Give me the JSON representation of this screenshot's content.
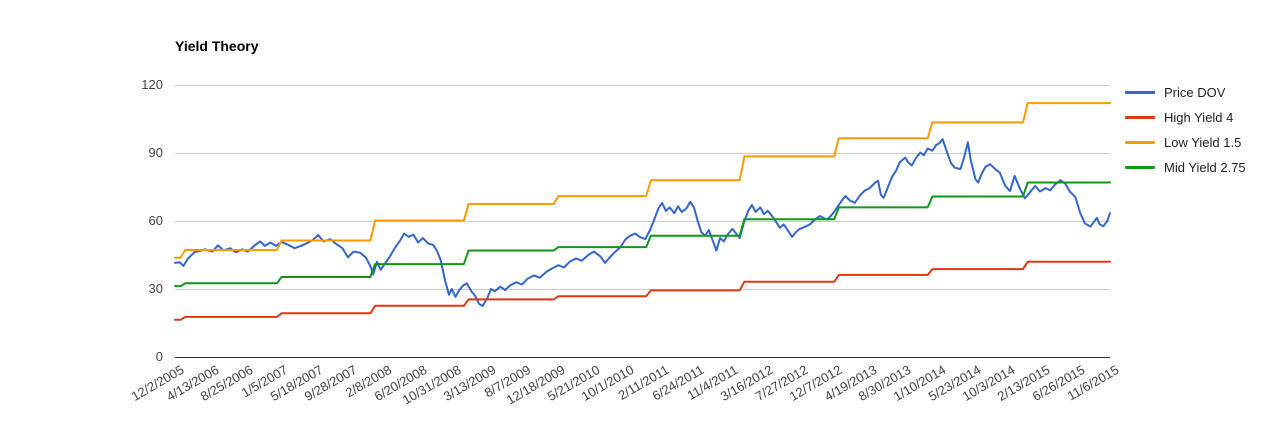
{
  "chart_data": {
    "type": "line",
    "title": "Yield Theory",
    "ylim": [
      0,
      120
    ],
    "y_ticks": [
      0,
      30,
      60,
      90,
      120
    ],
    "grid": "horizontal-on",
    "legend_position": "right",
    "axis_colors": {
      "text": "#444444",
      "grid": "#cccccc",
      "baseline": "#333333"
    },
    "x_labels": [
      "12/2/2005",
      "4/13/2006",
      "8/25/2006",
      "1/5/2007",
      "5/18/2007",
      "9/28/2007",
      "2/8/2008",
      "6/20/2008",
      "10/31/2008",
      "3/13/2009",
      "8/7/2009",
      "12/18/2009",
      "5/21/2010",
      "10/1/2010",
      "2/11/2011",
      "6/24/2011",
      "11/4/2011",
      "3/16/2012",
      "7/27/2012",
      "12/7/2012",
      "4/19/2013",
      "8/30/2013",
      "1/10/2014",
      "5/23/2014",
      "10/3/2014",
      "2/13/2015",
      "6/26/2015",
      "11/6/2015"
    ],
    "series": [
      {
        "name": "Price DOV",
        "color": "#3366CC",
        "points": [
          [
            0,
            41.5
          ],
          [
            0.005,
            41.8
          ],
          [
            0.009,
            40.2
          ],
          [
            0.014,
            43.5
          ],
          [
            0.021,
            46.3
          ],
          [
            0.027,
            46.8
          ],
          [
            0.032,
            47.5
          ],
          [
            0.04,
            46.5
          ],
          [
            0.046,
            49.3
          ],
          [
            0.052,
            47
          ],
          [
            0.059,
            48
          ],
          [
            0.065,
            46.2
          ],
          [
            0.072,
            47.5
          ],
          [
            0.078,
            46.5
          ],
          [
            0.086,
            49.5
          ],
          [
            0.091,
            51
          ],
          [
            0.096,
            49
          ],
          [
            0.102,
            50.5
          ],
          [
            0.108,
            49
          ],
          [
            0.114,
            50.8
          ],
          [
            0.121,
            49.5
          ],
          [
            0.128,
            48
          ],
          [
            0.134,
            48.9
          ],
          [
            0.14,
            50
          ],
          [
            0.147,
            51.5
          ],
          [
            0.153,
            53.8
          ],
          [
            0.159,
            51
          ],
          [
            0.166,
            52
          ],
          [
            0.172,
            50
          ],
          [
            0.179,
            48
          ],
          [
            0.185,
            44
          ],
          [
            0.191,
            46.5
          ],
          [
            0.198,
            46
          ],
          [
            0.204,
            44
          ],
          [
            0.209,
            40
          ],
          [
            0.212,
            36.5
          ],
          [
            0.216,
            42
          ],
          [
            0.22,
            38.5
          ],
          [
            0.225,
            41.5
          ],
          [
            0.23,
            44.5
          ],
          [
            0.235,
            48
          ],
          [
            0.241,
            51.5
          ],
          [
            0.245,
            54.5
          ],
          [
            0.25,
            53
          ],
          [
            0.255,
            54
          ],
          [
            0.26,
            50.5
          ],
          [
            0.265,
            52.5
          ],
          [
            0.271,
            50
          ],
          [
            0.276,
            49.5
          ],
          [
            0.28,
            47
          ],
          [
            0.284,
            43
          ],
          [
            0.289,
            33.5
          ],
          [
            0.293,
            27.5
          ],
          [
            0.296,
            30
          ],
          [
            0.3,
            26.5
          ],
          [
            0.304,
            29.5
          ],
          [
            0.308,
            31.5
          ],
          [
            0.312,
            32.5
          ],
          [
            0.317,
            29
          ],
          [
            0.321,
            27
          ],
          [
            0.325,
            23.5
          ],
          [
            0.329,
            22.5
          ],
          [
            0.334,
            26
          ],
          [
            0.338,
            30
          ],
          [
            0.342,
            29
          ],
          [
            0.348,
            31
          ],
          [
            0.353,
            29.5
          ],
          [
            0.358,
            31.5
          ],
          [
            0.365,
            33
          ],
          [
            0.371,
            32
          ],
          [
            0.377,
            34.5
          ],
          [
            0.384,
            36
          ],
          [
            0.39,
            35
          ],
          [
            0.397,
            37.5
          ],
          [
            0.403,
            39
          ],
          [
            0.41,
            40.5
          ],
          [
            0.416,
            39.5
          ],
          [
            0.422,
            42
          ],
          [
            0.429,
            43.5
          ],
          [
            0.435,
            42.5
          ],
          [
            0.442,
            45
          ],
          [
            0.448,
            46.5
          ],
          [
            0.455,
            44.4
          ],
          [
            0.46,
            41.5
          ],
          [
            0.465,
            44
          ],
          [
            0.471,
            46.5
          ],
          [
            0.476,
            48.3
          ],
          [
            0.482,
            52
          ],
          [
            0.487,
            53.5
          ],
          [
            0.492,
            54.5
          ],
          [
            0.497,
            53
          ],
          [
            0.503,
            52
          ],
          [
            0.508,
            56
          ],
          [
            0.512,
            60
          ],
          [
            0.517,
            65.5
          ],
          [
            0.521,
            68
          ],
          [
            0.525,
            64.5
          ],
          [
            0.529,
            66
          ],
          [
            0.534,
            63.5
          ],
          [
            0.538,
            66.5
          ],
          [
            0.542,
            64
          ],
          [
            0.547,
            65.5
          ],
          [
            0.551,
            68.5
          ],
          [
            0.555,
            66
          ],
          [
            0.559,
            60
          ],
          [
            0.563,
            55
          ],
          [
            0.567,
            53.5
          ],
          [
            0.571,
            56
          ],
          [
            0.575,
            51.5
          ],
          [
            0.579,
            47
          ],
          [
            0.583,
            52.5
          ],
          [
            0.587,
            51
          ],
          [
            0.591,
            54
          ],
          [
            0.596,
            56.5
          ],
          [
            0.6,
            54.5
          ],
          [
            0.604,
            52.5
          ],
          [
            0.609,
            60
          ],
          [
            0.613,
            64.5
          ],
          [
            0.617,
            67
          ],
          [
            0.621,
            64
          ],
          [
            0.626,
            66
          ],
          [
            0.63,
            63
          ],
          [
            0.634,
            64.5
          ],
          [
            0.638,
            62.5
          ],
          [
            0.643,
            59.5
          ],
          [
            0.647,
            57
          ],
          [
            0.651,
            58.5
          ],
          [
            0.656,
            55.5
          ],
          [
            0.66,
            53
          ],
          [
            0.664,
            55
          ],
          [
            0.668,
            56.5
          ],
          [
            0.674,
            57.5
          ],
          [
            0.679,
            58.5
          ],
          [
            0.684,
            60.5
          ],
          [
            0.69,
            62.2
          ],
          [
            0.695,
            61
          ],
          [
            0.698,
            60.7
          ],
          [
            0.704,
            63.5
          ],
          [
            0.709,
            66.5
          ],
          [
            0.714,
            69.5
          ],
          [
            0.717,
            71
          ],
          [
            0.722,
            69
          ],
          [
            0.727,
            68
          ],
          [
            0.733,
            71.5
          ],
          [
            0.738,
            73.5
          ],
          [
            0.743,
            74.5
          ],
          [
            0.749,
            77
          ],
          [
            0.752,
            77.7
          ],
          [
            0.755,
            71.5
          ],
          [
            0.758,
            70.3
          ],
          [
            0.763,
            75.5
          ],
          [
            0.767,
            79.5
          ],
          [
            0.771,
            82
          ],
          [
            0.775,
            85.8
          ],
          [
            0.781,
            88
          ],
          [
            0.784,
            86
          ],
          [
            0.788,
            84.5
          ],
          [
            0.792,
            87.5
          ],
          [
            0.797,
            90.2
          ],
          [
            0.801,
            89
          ],
          [
            0.805,
            92
          ],
          [
            0.81,
            91
          ],
          [
            0.814,
            93.5
          ],
          [
            0.818,
            94.5
          ],
          [
            0.821,
            96.1
          ],
          [
            0.826,
            90
          ],
          [
            0.83,
            85.5
          ],
          [
            0.834,
            83.5
          ],
          [
            0.84,
            82.9
          ],
          [
            0.844,
            88
          ],
          [
            0.848,
            94.7
          ],
          [
            0.851,
            87
          ],
          [
            0.856,
            78.5
          ],
          [
            0.859,
            77
          ],
          [
            0.863,
            81
          ],
          [
            0.867,
            84
          ],
          [
            0.872,
            85
          ],
          [
            0.877,
            83
          ],
          [
            0.882,
            81.4
          ],
          [
            0.888,
            75.5
          ],
          [
            0.893,
            73.2
          ],
          [
            0.898,
            79.9
          ],
          [
            0.904,
            74
          ],
          [
            0.909,
            70
          ],
          [
            0.914,
            72.5
          ],
          [
            0.92,
            75.5
          ],
          [
            0.925,
            73
          ],
          [
            0.931,
            74.5
          ],
          [
            0.936,
            73.5
          ],
          [
            0.941,
            76
          ],
          [
            0.947,
            78
          ],
          [
            0.952,
            76.5
          ],
          [
            0.957,
            73
          ],
          [
            0.963,
            70.5
          ],
          [
            0.968,
            63.7
          ],
          [
            0.973,
            59
          ],
          [
            0.979,
            57.5
          ],
          [
            0.982,
            59.2
          ],
          [
            0.986,
            61.4
          ],
          [
            0.989,
            58.5
          ],
          [
            0.993,
            57.7
          ],
          [
            0.997,
            60
          ],
          [
            1,
            63.5
          ]
        ]
      },
      {
        "name": "High Yield 4",
        "color": "#DC3912",
        "points": [
          [
            0,
            16.4
          ],
          [
            0.006,
            16.4
          ],
          [
            0.011,
            17.7
          ],
          [
            0.109,
            17.7
          ],
          [
            0.114,
            19.3
          ],
          [
            0.209,
            19.3
          ],
          [
            0.214,
            22.6
          ],
          [
            0.309,
            22.6
          ],
          [
            0.314,
            25.4
          ],
          [
            0.405,
            25.4
          ],
          [
            0.41,
            26.8
          ],
          [
            0.504,
            26.8
          ],
          [
            0.509,
            29.4
          ],
          [
            0.604,
            29.4
          ],
          [
            0.609,
            33.2
          ],
          [
            0.705,
            33.2
          ],
          [
            0.71,
            36.2
          ],
          [
            0.805,
            36.2
          ],
          [
            0.81,
            38.8
          ],
          [
            0.907,
            38.8
          ],
          [
            0.912,
            42
          ],
          [
            1,
            42
          ]
        ]
      },
      {
        "name": "Low Yield 1.5",
        "color": "#FF9900",
        "points": [
          [
            0,
            43.8
          ],
          [
            0.006,
            43.8
          ],
          [
            0.011,
            47.2
          ],
          [
            0.109,
            47.2
          ],
          [
            0.114,
            51.4
          ],
          [
            0.209,
            51.4
          ],
          [
            0.214,
            60.2
          ],
          [
            0.309,
            60.2
          ],
          [
            0.314,
            67.5
          ],
          [
            0.405,
            67.5
          ],
          [
            0.41,
            71
          ],
          [
            0.504,
            71
          ],
          [
            0.509,
            78
          ],
          [
            0.604,
            78
          ],
          [
            0.609,
            88.5
          ],
          [
            0.705,
            88.5
          ],
          [
            0.71,
            96.5
          ],
          [
            0.805,
            96.5
          ],
          [
            0.81,
            103.5
          ],
          [
            0.907,
            103.5
          ],
          [
            0.912,
            112
          ],
          [
            1,
            112
          ]
        ]
      },
      {
        "name": "Mid Yield 2.75",
        "color": "#109618",
        "points": [
          [
            0,
            31.3
          ],
          [
            0.006,
            31.3
          ],
          [
            0.011,
            32.5
          ],
          [
            0.109,
            32.5
          ],
          [
            0.114,
            35.3
          ],
          [
            0.209,
            35.3
          ],
          [
            0.214,
            41
          ],
          [
            0.309,
            41
          ],
          [
            0.314,
            47
          ],
          [
            0.405,
            47
          ],
          [
            0.41,
            48.5
          ],
          [
            0.504,
            48.5
          ],
          [
            0.509,
            53.5
          ],
          [
            0.604,
            53.5
          ],
          [
            0.609,
            60.8
          ],
          [
            0.705,
            60.8
          ],
          [
            0.71,
            66
          ],
          [
            0.805,
            66
          ],
          [
            0.81,
            70.8
          ],
          [
            0.907,
            70.8
          ],
          [
            0.912,
            77
          ],
          [
            1,
            77
          ]
        ]
      }
    ]
  }
}
